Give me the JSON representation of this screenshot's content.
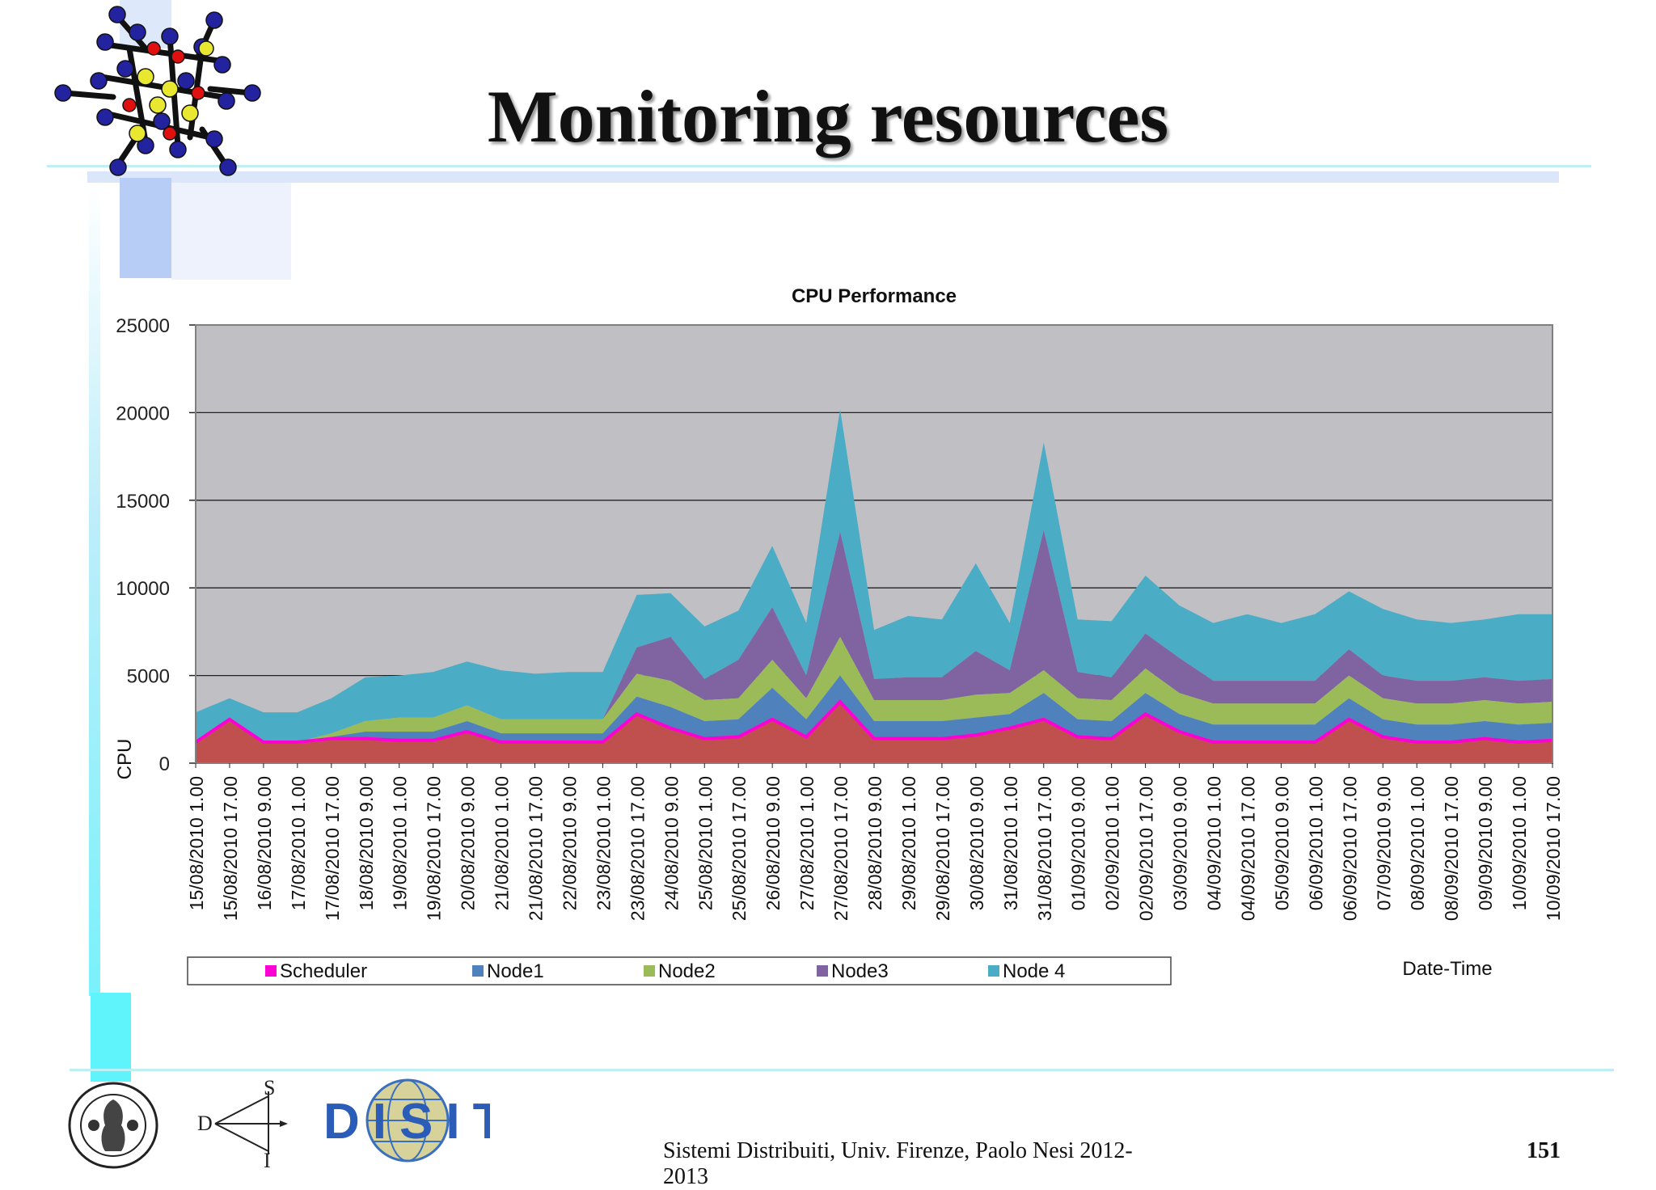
{
  "slide": {
    "title": "Monitoring resources",
    "footer": "Sistemi Distribuiti, Univ. Firenze, Paolo Nesi 2012-2013",
    "page_number": "151",
    "logos": {
      "dsi_letters": [
        "D",
        "S",
        "I"
      ],
      "disit_text": "DISIT",
      "unifi_seal_text": "STVDIORVM UNIVERSITAS FLORENTINA"
    }
  },
  "colors": {
    "plot_background": "#c0c0c4",
    "Scheduler_line": "#ff00d4",
    "Scheduler_fill": "#c0504d",
    "Node1": "#4f81bd",
    "Node2": "#9bbb59",
    "Node3": "#8064a2",
    "Node 4": "#4bacc6"
  },
  "chart_data": {
    "type": "area",
    "stacked": true,
    "title": "CPU Performance",
    "xlabel": "Date-Time",
    "ylabel": "CPU",
    "ylim": [
      0,
      25000
    ],
    "yticks": [
      0,
      5000,
      10000,
      15000,
      20000,
      25000
    ],
    "grid": "horizontal",
    "legend_position": "bottom",
    "legend": [
      "Scheduler",
      "Node1",
      "Node2",
      "Node3",
      "Node 4"
    ],
    "x": [
      "15/08/2010 1.00",
      "15/08/2010 17.00",
      "16/08/2010 9.00",
      "17/08/2010 1.00",
      "17/08/2010 17.00",
      "18/08/2010 9.00",
      "19/08/2010 1.00",
      "19/08/2010 17.00",
      "20/08/2010 9.00",
      "21/08/2010 1.00",
      "21/08/2010 17.00",
      "22/08/2010 9.00",
      "23/08/2010 1.00",
      "23/08/2010 17.00",
      "24/08/2010 9.00",
      "25/08/2010 1.00",
      "25/08/2010 17.00",
      "26/08/2010 9.00",
      "27/08/2010 1.00",
      "27/08/2010 17.00",
      "28/08/2010 9.00",
      "29/08/2010 1.00",
      "29/08/2010 17.00",
      "30/08/2010 9.00",
      "31/08/2010 1.00",
      "31/08/2010 17.00",
      "01/09/2010 9.00",
      "02/09/2010 1.00",
      "02/09/2010 17.00",
      "03/09/2010 9.00",
      "04/09/2010 1.00",
      "04/09/2010 17.00",
      "05/09/2010 9.00",
      "06/09/2010 1.00",
      "06/09/2010 17.00",
      "07/09/2010 9.00",
      "08/09/2010 1.00",
      "08/09/2010 17.00",
      "09/09/2010 9.00",
      "10/09/2010 1.00",
      "10/09/2010 17.00"
    ],
    "series": [
      {
        "name": "Scheduler",
        "values": [
          1200,
          2500,
          1200,
          1200,
          1400,
          1400,
          1300,
          1300,
          1800,
          1200,
          1200,
          1200,
          1200,
          2800,
          2000,
          1400,
          1500,
          2500,
          1500,
          3500,
          1400,
          1400,
          1400,
          1600,
          2000,
          2500,
          1500,
          1400,
          2800,
          1800,
          1200,
          1200,
          1200,
          1200,
          2500,
          1500,
          1200,
          1200,
          1400,
          1200,
          1300
        ]
      },
      {
        "name": "Node1",
        "values": [
          0,
          0,
          0,
          0,
          100,
          400,
          500,
          500,
          600,
          500,
          500,
          500,
          500,
          1000,
          1200,
          1000,
          1000,
          1800,
          1000,
          1500,
          1000,
          1000,
          1000,
          1000,
          800,
          1500,
          1000,
          1000,
          1200,
          1000,
          1000,
          1000,
          1000,
          1000,
          1200,
          1000,
          1000,
          1000,
          1000,
          1000,
          1000
        ]
      },
      {
        "name": "Node2",
        "values": [
          0,
          0,
          0,
          0,
          200,
          600,
          800,
          800,
          900,
          800,
          800,
          800,
          800,
          1300,
          1500,
          1200,
          1200,
          1600,
          1200,
          2200,
          1200,
          1200,
          1200,
          1300,
          1200,
          1300,
          1200,
          1200,
          1400,
          1200,
          1200,
          1200,
          1200,
          1200,
          1300,
          1200,
          1200,
          1200,
          1200,
          1200,
          1200
        ]
      },
      {
        "name": "Node3",
        "values": [
          0,
          0,
          0,
          0,
          0,
          0,
          0,
          0,
          0,
          0,
          0,
          0,
          0,
          1500,
          2500,
          1200,
          2200,
          3000,
          1300,
          6000,
          1200,
          1300,
          1300,
          2500,
          1300,
          8000,
          1500,
          1300,
          2000,
          2000,
          1300,
          1300,
          1300,
          1300,
          1500,
          1300,
          1300,
          1300,
          1300,
          1300,
          1300
        ]
      },
      {
        "name": "Node 4",
        "values": [
          1700,
          1200,
          1700,
          1700,
          2000,
          2500,
          2400,
          2600,
          2500,
          2800,
          2600,
          2700,
          2700,
          3000,
          2500,
          3000,
          2800,
          3500,
          3000,
          7000,
          2800,
          3500,
          3300,
          5000,
          2700,
          5000,
          3000,
          3200,
          3300,
          3000,
          3300,
          3800,
          3300,
          3800,
          3300,
          3800,
          3500,
          3300,
          3300,
          3800,
          3700
        ]
      }
    ]
  }
}
